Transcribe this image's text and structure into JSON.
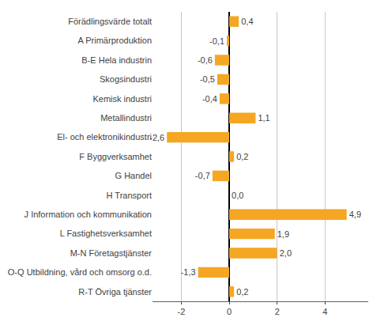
{
  "chart_data": {
    "type": "bar",
    "orientation": "horizontal",
    "categories": [
      "R-T Övriga tjänster",
      "O-Q Utbildning, vård och omsorg o.d.",
      "M-N Företagstjänster",
      "L Fastighetsverksamhet",
      "J Information och kommunikation",
      "H Transport",
      "G Handel",
      "F Byggverksamhet",
      "El- och elektronikindustri",
      "Metallindustri",
      "Kemisk industri",
      "Skogsindustri",
      "B-E Hela industrin",
      "A Primärproduktion",
      "Förädlingsvärde totalt"
    ],
    "values": [
      0.2,
      -1.3,
      2.0,
      1.9,
      4.9,
      0.0,
      -0.7,
      0.2,
      -2.6,
      1.1,
      -0.4,
      -0.5,
      -0.6,
      -0.1,
      0.4
    ],
    "value_labels": [
      "0,2",
      "-1,3",
      "2,0",
      "1,9",
      "4,9",
      "0,0",
      "-0,7",
      "0,2",
      "-2,6",
      "1,1",
      "-0,4",
      "-0,5",
      "-0,6",
      "-0,1",
      "0,4"
    ],
    "data_labels": true,
    "color": "#F5A623",
    "xlim": [
      -3.2,
      5.8
    ],
    "xticks": [
      -2,
      0,
      2,
      4
    ],
    "grid": true
  }
}
